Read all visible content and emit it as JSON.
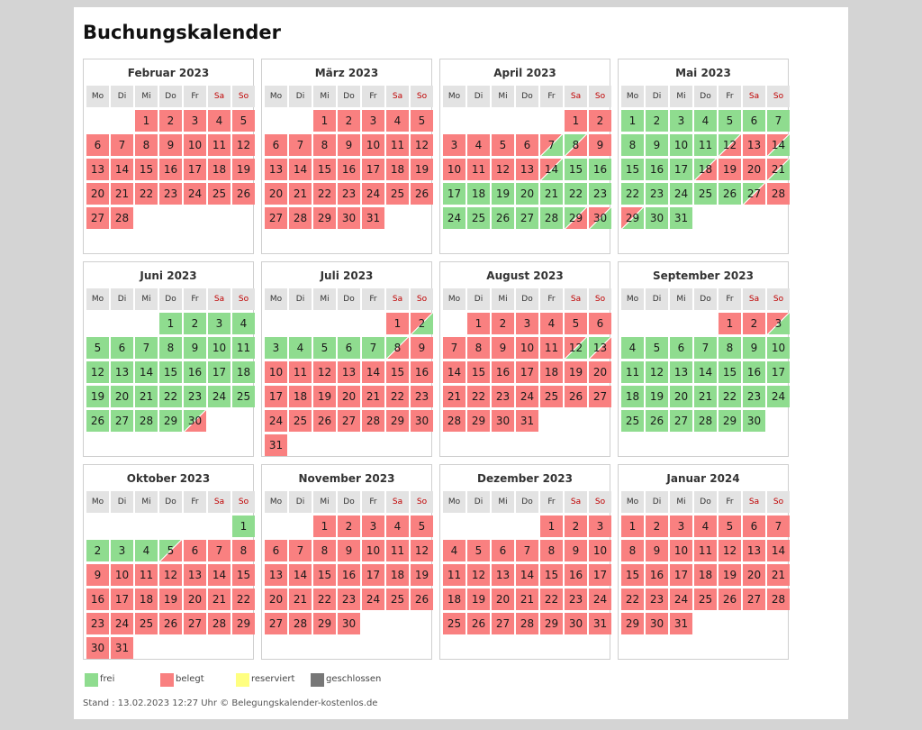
{
  "page": {
    "title": "Buchungskalender"
  },
  "weekday_labels": [
    "Mo",
    "Di",
    "Mi",
    "Do",
    "Fr",
    "Sa",
    "So"
  ],
  "status_colors": {
    "frei": "#8fdc8f",
    "belegt": "#f98080",
    "reserviert": "#ffff80",
    "geschlossen": "#777777"
  },
  "status_codes": {
    "F": "frei",
    "B": "belegt",
    "FB": "frei/belegt",
    "BF": "belegt/frei"
  },
  "months": [
    {
      "title": "Februar 2023",
      "first_weekday": 3,
      "days": 28,
      "status": {
        "*": "B"
      }
    },
    {
      "title": "März 2023",
      "first_weekday": 3,
      "days": 31,
      "status": {
        "*": "B"
      }
    },
    {
      "title": "April 2023",
      "first_weekday": 6,
      "days": 30,
      "status": {
        "*": "F",
        "1": "B",
        "2": "B",
        "3": "B",
        "4": "B",
        "5": "B",
        "6": "B",
        "7": "BF",
        "8": "FB",
        "9": "B",
        "10": "B",
        "11": "B",
        "12": "B",
        "13": "B",
        "14": "BF",
        "29": "FB",
        "30": "BF"
      }
    },
    {
      "title": "Mai 2023",
      "first_weekday": 1,
      "days": 31,
      "status": {
        "*": "F",
        "12": "FB",
        "13": "B",
        "14": "BF",
        "18": "FB",
        "19": "B",
        "20": "B",
        "21": "BF",
        "27": "FB",
        "28": "B",
        "29": "BF"
      }
    },
    {
      "title": "Juni 2023",
      "first_weekday": 4,
      "days": 30,
      "status": {
        "*": "F",
        "30": "FB"
      }
    },
    {
      "title": "Juli 2023",
      "first_weekday": 6,
      "days": 31,
      "status": {
        "*": "B",
        "1": "B",
        "2": "BF",
        "3": "F",
        "4": "F",
        "5": "F",
        "6": "F",
        "7": "F",
        "8": "FB"
      }
    },
    {
      "title": "August 2023",
      "first_weekday": 2,
      "days": 31,
      "status": {
        "*": "B",
        "12": "BF",
        "13": "FB"
      }
    },
    {
      "title": "September 2023",
      "first_weekday": 5,
      "days": 30,
      "status": {
        "*": "F",
        "1": "B",
        "2": "B",
        "3": "BF"
      }
    },
    {
      "title": "Oktober 2023",
      "first_weekday": 7,
      "days": 31,
      "status": {
        "*": "B",
        "1": "F",
        "2": "F",
        "3": "F",
        "4": "F",
        "5": "FB"
      }
    },
    {
      "title": "November 2023",
      "first_weekday": 3,
      "days": 30,
      "status": {
        "*": "B"
      }
    },
    {
      "title": "Dezember 2023",
      "first_weekday": 5,
      "days": 31,
      "status": {
        "*": "B"
      }
    },
    {
      "title": "Januar 2024",
      "first_weekday": 1,
      "days": 31,
      "status": {
        "*": "B"
      }
    }
  ],
  "legend": [
    {
      "label": "frei",
      "color": "#8fdc8f"
    },
    {
      "label": "belegt",
      "color": "#f98080"
    },
    {
      "label": "reserviert",
      "color": "#ffff80"
    },
    {
      "label": "geschlossen",
      "color": "#777777"
    }
  ],
  "footer": {
    "text": "Stand : 13.02.2023 12:27 Uhr © Belegungskalender-kostenlos.de"
  }
}
